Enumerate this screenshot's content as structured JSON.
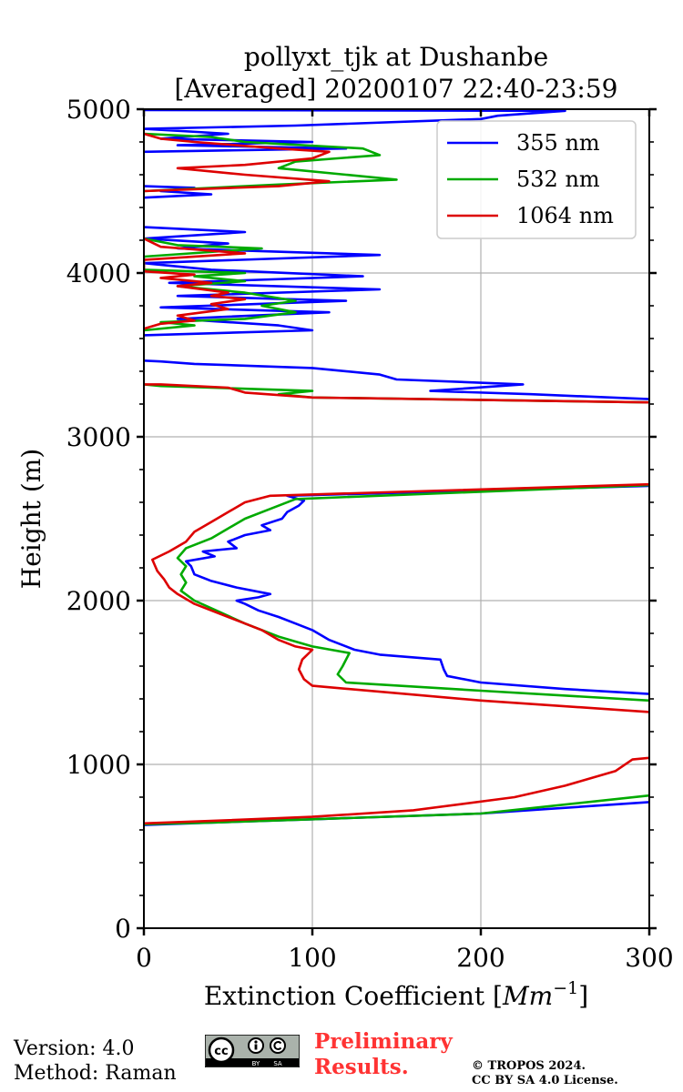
{
  "chart_data": {
    "type": "line",
    "title": [
      "pollyxt_tjk at Dushanbe",
      "[Averaged] 20200107 22:40-23:59"
    ],
    "xlabel": "Extinction Coefficient [Mm⁻¹]",
    "ylabel": "Height (m)",
    "xlim": [
      0,
      300
    ],
    "ylim": [
      0,
      5000
    ],
    "xticks": [
      0,
      100,
      200,
      300
    ],
    "yticks": [
      0,
      1000,
      2000,
      3000,
      4000,
      5000
    ],
    "xtick_labels": [
      "0",
      "100",
      "200",
      "300"
    ],
    "ytick_labels": [
      "0",
      "1000",
      "2000",
      "3000",
      "4000",
      "5000"
    ],
    "grid": true,
    "legend_position": "top-right",
    "series": [
      {
        "name": "355 nm",
        "color": "#0000ff",
        "points": [
          [
            300,
            770
          ],
          [
            200,
            700
          ],
          [
            100,
            665
          ],
          [
            40,
            645
          ],
          [
            0,
            630
          ],
          [
            null,
            null
          ],
          [
            300,
            1430
          ],
          [
            250,
            1460
          ],
          [
            200,
            1500
          ],
          [
            180,
            1540
          ],
          [
            178,
            1580
          ],
          [
            176,
            1640
          ],
          [
            140,
            1670
          ],
          [
            125,
            1700
          ],
          [
            110,
            1760
          ],
          [
            100,
            1820
          ],
          [
            90,
            1860
          ],
          [
            80,
            1900
          ],
          [
            68,
            1940
          ],
          [
            60,
            1980
          ],
          [
            55,
            2000
          ],
          [
            68,
            2020
          ],
          [
            75,
            2040
          ],
          [
            55,
            2080
          ],
          [
            40,
            2120
          ],
          [
            30,
            2160
          ],
          [
            28,
            2210
          ],
          [
            25,
            2240
          ],
          [
            42,
            2270
          ],
          [
            35,
            2300
          ],
          [
            55,
            2320
          ],
          [
            50,
            2360
          ],
          [
            60,
            2400
          ],
          [
            75,
            2430
          ],
          [
            70,
            2460
          ],
          [
            82,
            2500
          ],
          [
            85,
            2540
          ],
          [
            92,
            2580
          ],
          [
            95,
            2610
          ],
          [
            85,
            2640
          ],
          [
            300,
            2700
          ],
          [
            null,
            null
          ],
          [
            300,
            3230
          ],
          [
            230,
            3260
          ],
          [
            170,
            3280
          ],
          [
            225,
            3320
          ],
          [
            150,
            3350
          ],
          [
            140,
            3380
          ],
          [
            100,
            3420
          ],
          [
            30,
            3445
          ],
          [
            10,
            3460
          ],
          [
            0,
            3465
          ],
          [
            null,
            null
          ],
          [
            0,
            3620
          ],
          [
            100,
            3650
          ],
          [
            80,
            3680
          ],
          [
            20,
            3720
          ],
          [
            110,
            3760
          ],
          [
            10,
            3790
          ],
          [
            120,
            3830
          ],
          [
            20,
            3860
          ],
          [
            140,
            3900
          ],
          [
            15,
            3940
          ],
          [
            130,
            3980
          ],
          [
            40,
            4020
          ],
          [
            0,
            4060
          ],
          [
            140,
            4110
          ],
          [
            20,
            4150
          ],
          [
            50,
            4180
          ],
          [
            0,
            4210
          ],
          [
            60,
            4250
          ],
          [
            0,
            4280
          ],
          [
            null,
            null
          ],
          [
            0,
            4460
          ],
          [
            40,
            4480
          ],
          [
            10,
            4500
          ],
          [
            30,
            4520
          ],
          [
            0,
            4530
          ],
          [
            null,
            null
          ],
          [
            0,
            4740
          ],
          [
            120,
            4760
          ],
          [
            20,
            4780
          ],
          [
            100,
            4800
          ],
          [
            10,
            4820
          ],
          [
            50,
            4850
          ],
          [
            0,
            4880
          ],
          [
            90,
            4900
          ],
          [
            200,
            4940
          ],
          [
            210,
            4960
          ],
          [
            250,
            4990
          ],
          [
            0,
            4995
          ]
        ]
      },
      {
        "name": "532 nm",
        "color": "#00aa00",
        "points": [
          [
            300,
            810
          ],
          [
            200,
            700
          ],
          [
            100,
            665
          ],
          [
            40,
            645
          ],
          [
            0,
            635
          ],
          [
            null,
            null
          ],
          [
            300,
            1390
          ],
          [
            200,
            1450
          ],
          [
            120,
            1500
          ],
          [
            115,
            1550
          ],
          [
            118,
            1600
          ],
          [
            122,
            1680
          ],
          [
            100,
            1720
          ],
          [
            80,
            1780
          ],
          [
            60,
            1860
          ],
          [
            45,
            1930
          ],
          [
            30,
            2000
          ],
          [
            22,
            2060
          ],
          [
            25,
            2110
          ],
          [
            22,
            2160
          ],
          [
            25,
            2210
          ],
          [
            20,
            2260
          ],
          [
            25,
            2320
          ],
          [
            40,
            2380
          ],
          [
            50,
            2440
          ],
          [
            60,
            2500
          ],
          [
            75,
            2560
          ],
          [
            90,
            2620
          ],
          [
            300,
            2705
          ],
          [
            null,
            null
          ],
          [
            300,
            3210
          ],
          [
            100,
            3240
          ],
          [
            80,
            3260
          ],
          [
            100,
            3280
          ],
          [
            10,
            3310
          ],
          [
            0,
            3320
          ],
          [
            null,
            null
          ],
          [
            0,
            3650
          ],
          [
            30,
            3680
          ],
          [
            10,
            3700
          ],
          [
            60,
            3720
          ],
          [
            90,
            3760
          ],
          [
            70,
            3800
          ],
          [
            90,
            3830
          ],
          [
            60,
            3880
          ],
          [
            20,
            3920
          ],
          [
            60,
            3950
          ],
          [
            30,
            3980
          ],
          [
            60,
            4000
          ],
          [
            0,
            4020
          ],
          [
            0,
            4100
          ],
          [
            70,
            4150
          ],
          [
            20,
            4170
          ],
          [
            0,
            4210
          ],
          [
            null,
            null
          ],
          [
            0,
            4500
          ],
          [
            80,
            4540
          ],
          [
            150,
            4570
          ],
          [
            120,
            4600
          ],
          [
            80,
            4640
          ],
          [
            90,
            4680
          ],
          [
            140,
            4720
          ],
          [
            130,
            4760
          ],
          [
            60,
            4800
          ],
          [
            40,
            4830
          ],
          [
            0,
            4850
          ]
        ]
      },
      {
        "name": "1064 nm",
        "color": "#dd0000",
        "points": [
          [
            300,
            1040
          ],
          [
            290,
            1030
          ],
          [
            280,
            960
          ],
          [
            260,
            900
          ],
          [
            250,
            870
          ],
          [
            220,
            800
          ],
          [
            160,
            720
          ],
          [
            100,
            680
          ],
          [
            40,
            655
          ],
          [
            0,
            640
          ],
          [
            null,
            null
          ],
          [
            300,
            1320
          ],
          [
            200,
            1390
          ],
          [
            100,
            1480
          ],
          [
            95,
            1520
          ],
          [
            92,
            1580
          ],
          [
            94,
            1640
          ],
          [
            100,
            1700
          ],
          [
            90,
            1720
          ],
          [
            80,
            1760
          ],
          [
            70,
            1820
          ],
          [
            60,
            1860
          ],
          [
            50,
            1900
          ],
          [
            40,
            1940
          ],
          [
            30,
            1980
          ],
          [
            20,
            2040
          ],
          [
            15,
            2080
          ],
          [
            12,
            2130
          ],
          [
            8,
            2180
          ],
          [
            5,
            2250
          ],
          [
            15,
            2300
          ],
          [
            25,
            2360
          ],
          [
            30,
            2420
          ],
          [
            40,
            2480
          ],
          [
            50,
            2540
          ],
          [
            60,
            2600
          ],
          [
            75,
            2640
          ],
          [
            300,
            2710
          ],
          [
            null,
            null
          ],
          [
            300,
            3210
          ],
          [
            100,
            3240
          ],
          [
            60,
            3270
          ],
          [
            50,
            3300
          ],
          [
            10,
            3320
          ],
          [
            0,
            3320
          ],
          [
            null,
            null
          ],
          [
            0,
            3660
          ],
          [
            10,
            3690
          ],
          [
            30,
            3710
          ],
          [
            20,
            3740
          ],
          [
            50,
            3780
          ],
          [
            40,
            3810
          ],
          [
            60,
            3840
          ],
          [
            40,
            3860
          ],
          [
            50,
            3880
          ],
          [
            20,
            3920
          ],
          [
            40,
            3940
          ],
          [
            10,
            3970
          ],
          [
            30,
            3990
          ],
          [
            0,
            4010
          ],
          [
            0,
            4080
          ],
          [
            60,
            4120
          ],
          [
            10,
            4160
          ],
          [
            0,
            4210
          ],
          [
            null,
            null
          ],
          [
            0,
            4500
          ],
          [
            80,
            4530
          ],
          [
            110,
            4560
          ],
          [
            60,
            4600
          ],
          [
            20,
            4640
          ],
          [
            60,
            4660
          ],
          [
            100,
            4700
          ],
          [
            110,
            4740
          ],
          [
            80,
            4760
          ],
          [
            30,
            4800
          ],
          [
            10,
            4820
          ],
          [
            0,
            4850
          ]
        ]
      }
    ]
  },
  "footer": {
    "version": "Version: 4.0",
    "method": "Method: Raman",
    "preliminary_line1": "Preliminary",
    "preliminary_line2": "Results.",
    "copyright_line1": "© TROPOS 2024.",
    "copyright_line2": "CC BY SA 4.0 License.",
    "cc_badge_text": [
      "cc",
      "BY",
      "SA"
    ]
  }
}
